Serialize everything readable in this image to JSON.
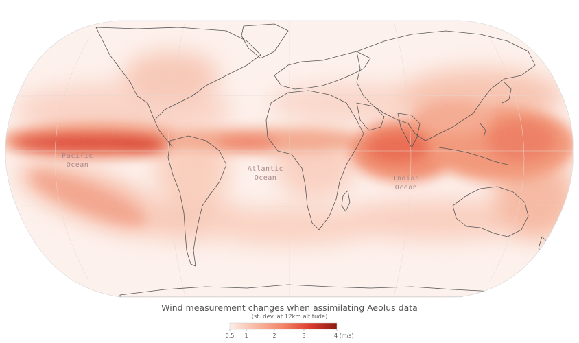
{
  "title": "Wind measurement changes when assimilating Aeolus data",
  "subtitle": "(st. dev. at 12km altitude)",
  "ocean_labels": {
    "pacific_line1": "Pacific",
    "pacific_line2": "Ocean",
    "atlantic_line1": "Atlantic",
    "atlantic_line2": "Ocean",
    "indian_line1": "Indian",
    "indian_line2": "Ocean"
  },
  "legend": {
    "ticks": [
      "0.5",
      "1",
      "2",
      "3",
      "4 (m/s)"
    ],
    "colors": [
      "#fdeee8",
      "#f9c2ae",
      "#f28466",
      "#dc3c2c",
      "#8c1a14"
    ]
  },
  "colors": {
    "background": "#ffffff",
    "map_base": "#fdf1ec",
    "coastline": "#555555",
    "high": "#d9321f",
    "medium": "#f08060",
    "low": "#f9c8b6"
  }
}
